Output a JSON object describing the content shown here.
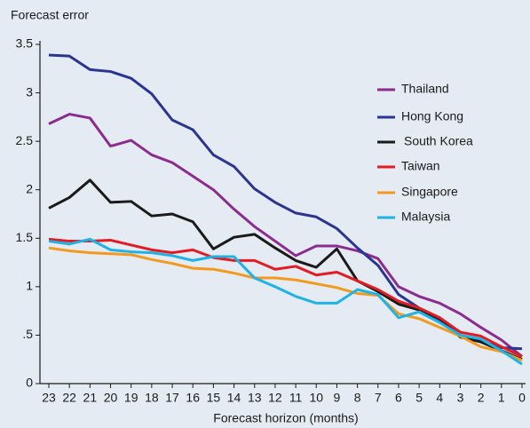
{
  "chart_data": {
    "type": "line",
    "title": "Forecast error",
    "xlabel": "Forecast horizon (months)",
    "x": [
      23,
      22,
      21,
      20,
      19,
      18,
      17,
      16,
      15,
      14,
      13,
      12,
      11,
      10,
      9,
      8,
      7,
      6,
      5,
      4,
      3,
      2,
      1,
      0
    ],
    "xlim": [
      23,
      0
    ],
    "xticks": [
      23,
      22,
      21,
      20,
      19,
      18,
      17,
      16,
      15,
      14,
      13,
      12,
      11,
      10,
      9,
      8,
      7,
      6,
      5,
      4,
      3,
      2,
      1,
      0
    ],
    "ylim": [
      0,
      3.5
    ],
    "yticks": [
      0,
      {
        "value": 0.5,
        "label": ".5"
      },
      1,
      1.5,
      2,
      2.5,
      3,
      3.5
    ],
    "legend": "right",
    "series": [
      {
        "name": "Thailand",
        "color": "#8b2c8e",
        "values": [
          2.68,
          2.78,
          2.74,
          2.45,
          2.51,
          2.36,
          2.28,
          2.14,
          2.0,
          1.8,
          1.62,
          1.47,
          1.32,
          1.42,
          1.42,
          1.37,
          1.29,
          1.0,
          0.9,
          0.83,
          0.72,
          0.58,
          0.45,
          0.28
        ]
      },
      {
        "name": "Hong Kong",
        "color": "#2b3591",
        "values": [
          3.39,
          3.38,
          3.24,
          3.22,
          3.15,
          2.99,
          2.72,
          2.62,
          2.36,
          2.24,
          2.01,
          1.87,
          1.76,
          1.72,
          1.6,
          1.4,
          1.22,
          0.92,
          0.78,
          0.65,
          0.5,
          0.44,
          0.37,
          0.36
        ]
      },
      {
        "name": "South Korea",
        "color": "#1a1a1a",
        "values": [
          1.81,
          1.92,
          2.1,
          1.87,
          1.88,
          1.73,
          1.75,
          1.67,
          1.39,
          1.51,
          1.54,
          1.4,
          1.27,
          1.2,
          1.39,
          1.06,
          0.95,
          0.82,
          0.76,
          0.67,
          0.48,
          0.43,
          0.34,
          0.25
        ]
      },
      {
        "name": "Taiwan",
        "color": "#e31b23",
        "values": [
          1.49,
          1.47,
          1.47,
          1.48,
          1.43,
          1.38,
          1.35,
          1.38,
          1.3,
          1.27,
          1.27,
          1.18,
          1.21,
          1.12,
          1.15,
          1.06,
          0.97,
          0.85,
          0.78,
          0.68,
          0.53,
          0.49,
          0.38,
          0.28
        ]
      },
      {
        "name": "Singapore",
        "color": "#f39a1e",
        "values": [
          1.4,
          1.37,
          1.35,
          1.34,
          1.33,
          1.28,
          1.24,
          1.19,
          1.18,
          1.14,
          1.09,
          1.09,
          1.07,
          1.03,
          0.99,
          0.93,
          0.91,
          0.72,
          0.67,
          0.58,
          0.49,
          0.38,
          0.33,
          0.24
        ]
      },
      {
        "name": "Malaysia",
        "color": "#1fb2e6",
        "values": [
          1.47,
          1.44,
          1.49,
          1.38,
          1.36,
          1.35,
          1.32,
          1.27,
          1.31,
          1.31,
          1.09,
          1.0,
          0.9,
          0.83,
          0.83,
          0.97,
          0.92,
          0.68,
          0.74,
          0.63,
          0.5,
          0.46,
          0.34,
          0.2
        ]
      }
    ]
  }
}
